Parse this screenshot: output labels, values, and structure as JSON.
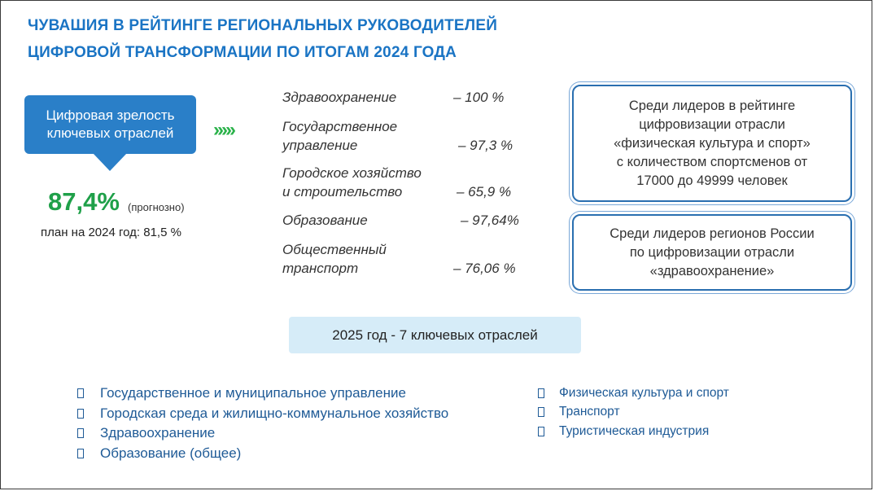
{
  "title": {
    "line1": "ЧУВАШИЯ В РЕЙТИНГЕ РЕГИОНАЛЬНЫХ РУКОВОДИТЕЛЕЙ",
    "line2": "ЦИФРОВОЙ ТРАНСФОРМАЦИИ ПО ИТОГАМ 2024 ГОДА"
  },
  "callout": {
    "line1": "Цифровая зрелость",
    "line2": "ключевых отраслей"
  },
  "arrows": "›››››",
  "maturity": {
    "value": "87,4%",
    "note": "(прогнозно)",
    "plan": "план на 2024 год: 81,5 %"
  },
  "sectors": [
    {
      "line1": "Здравоохранение",
      "line2": "",
      "value": "– 100 %"
    },
    {
      "line1": "Государственное",
      "line2": "управление",
      "value": "– 97,3 %"
    },
    {
      "line1": "Городское хозяйство",
      "line2": "и строительство",
      "value": "– 65,9 %"
    },
    {
      "line1": "Образование",
      "line2": "",
      "value": "– 97,64%"
    },
    {
      "line1": "Общественный",
      "line2": "транспорт",
      "value": "– 76,06 %"
    }
  ],
  "box1": {
    "lines": [
      "Среди лидеров в рейтинге",
      "цифровизации отрасли",
      "«физическая культура и спорт»",
      "с количеством спортсменов от",
      "17000 до 49999 человек"
    ]
  },
  "box2": {
    "lines": [
      "Среди лидеров регионов России",
      "по цифровизации отрасли",
      "«здравоохранение»"
    ]
  },
  "banner": "2025 год - 7 ключевых отраслей",
  "list_left": [
    "Государственное и муниципальное управление",
    "Городская среда и жилищно-коммунальное хозяйство",
    "Здравоохранение",
    "Образование (общее)"
  ],
  "list_right": [
    "Физическая культура и спорт",
    "Транспорт",
    "Туристическая индустрия"
  ],
  "colors": {
    "accent_blue": "#1a74c4",
    "callout_blue": "#2a7fc8",
    "green": "#1fa049",
    "banner_bg": "#d6ecf8"
  }
}
